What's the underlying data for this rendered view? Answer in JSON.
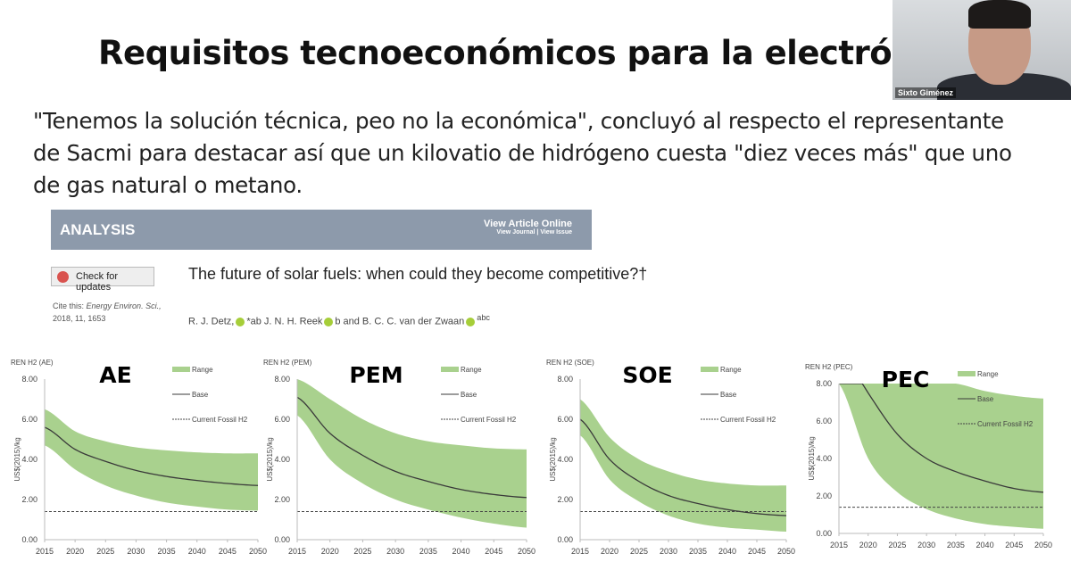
{
  "slide": {
    "title": "Requisitos tecnoeconómicos para la electrólisis",
    "quote": "\"Tenemos la solución técnica, peo no la económica\", concluyó al respecto el representante de Sacmi para destacar así que un kilovatio de hidrógeno cuesta \"diez veces más\" que uno de gas natural o metano."
  },
  "webcam": {
    "name": "Sixto Giménez"
  },
  "article": {
    "section": "ANALYSIS",
    "view_online": "View Article Online",
    "view_links": "View Journal | View Issue",
    "check_updates": "Check for updates",
    "cite_label": "Cite this:",
    "cite_journal": "Energy Environ. Sci.,",
    "cite_ref": "2018, 11, 1653",
    "title": "The future of solar fuels: when could they become competitive?†",
    "authors": [
      "R. J. Detz,",
      "*ab J. N. H. Reek",
      "b and B. C. C. van der Zwaan",
      "abc"
    ]
  },
  "colors": {
    "range": "#a9d18e",
    "base": "#3a3a3a",
    "fossil": "#444444"
  },
  "chart_data": [
    {
      "type": "area",
      "title": "REN H2 (AE)",
      "overlay": "AE",
      "ylabel": "US$(2015)/kg",
      "ylim": [
        0,
        8
      ],
      "yticks": [
        "0.00",
        "2.00",
        "4.00",
        "6.00",
        "8.00"
      ],
      "x": [
        2015,
        2020,
        2025,
        2030,
        2035,
        2040,
        2045,
        2050
      ],
      "legend": [
        "Range",
        "Base",
        "Current Fossil H2"
      ],
      "series": [
        {
          "name": "Base",
          "values": [
            5.6,
            4.5,
            3.9,
            3.45,
            3.15,
            2.95,
            2.8,
            2.7
          ]
        },
        {
          "name": "Range upper",
          "values": [
            6.5,
            5.4,
            4.9,
            4.6,
            4.45,
            4.35,
            4.3,
            4.3
          ]
        },
        {
          "name": "Range lower",
          "values": [
            4.7,
            3.5,
            2.7,
            2.2,
            1.85,
            1.65,
            1.5,
            1.45
          ]
        },
        {
          "name": "Current Fossil H2",
          "values": [
            1.4,
            1.4,
            1.4,
            1.4,
            1.4,
            1.4,
            1.4,
            1.4
          ]
        }
      ]
    },
    {
      "type": "area",
      "title": "REN H2 (PEM)",
      "overlay": "PEM",
      "ylabel": "US$(2015)/kg",
      "ylim": [
        0,
        8
      ],
      "yticks": [
        "0.00",
        "2.00",
        "4.00",
        "6.00",
        "8.00"
      ],
      "x": [
        2015,
        2020,
        2025,
        2030,
        2035,
        2040,
        2045,
        2050
      ],
      "legend": [
        "Range",
        "Base",
        "Current Fossil H2"
      ],
      "series": [
        {
          "name": "Base",
          "values": [
            7.1,
            5.3,
            4.2,
            3.4,
            2.9,
            2.5,
            2.25,
            2.1
          ]
        },
        {
          "name": "Range upper",
          "values": [
            8,
            7,
            6,
            5.3,
            4.9,
            4.7,
            4.55,
            4.5
          ]
        },
        {
          "name": "Range lower",
          "values": [
            6.2,
            4,
            2.8,
            2,
            1.5,
            1.1,
            0.8,
            0.6
          ]
        },
        {
          "name": "Current Fossil H2",
          "values": [
            1.4,
            1.4,
            1.4,
            1.4,
            1.4,
            1.4,
            1.4,
            1.4
          ]
        }
      ]
    },
    {
      "type": "area",
      "title": "REN H2 (SOE)",
      "overlay": "SOE",
      "ylabel": "US$(2015)/kg",
      "ylim": [
        0,
        8
      ],
      "yticks": [
        "0.00",
        "2.00",
        "4.00",
        "6.00",
        "8.00"
      ],
      "x": [
        2015,
        2020,
        2025,
        2030,
        2035,
        2040,
        2045,
        2050
      ],
      "legend": [
        "Range",
        "Base",
        "Current Fossil H2"
      ],
      "series": [
        {
          "name": "Base",
          "values": [
            6,
            4,
            2.9,
            2.2,
            1.8,
            1.5,
            1.3,
            1.2
          ]
        },
        {
          "name": "Range upper",
          "values": [
            7,
            5.1,
            4,
            3.4,
            3,
            2.8,
            2.7,
            2.7
          ]
        },
        {
          "name": "Range lower",
          "values": [
            5.2,
            3,
            1.9,
            1.2,
            0.8,
            0.6,
            0.5,
            0.4
          ]
        },
        {
          "name": "Current Fossil H2",
          "values": [
            1.4,
            1.4,
            1.4,
            1.4,
            1.4,
            1.4,
            1.4,
            1.4
          ]
        }
      ]
    },
    {
      "type": "area",
      "title": "REN H2 (PEC)",
      "overlay": "PEC",
      "ylabel": "US$(2015)/kg",
      "ylim": [
        0,
        8
      ],
      "yticks": [
        "0.00",
        "2.00",
        "4.00",
        "6.00",
        "8.00"
      ],
      "x": [
        2015,
        2020,
        2025,
        2030,
        2035,
        2040,
        2045,
        2050
      ],
      "legend": [
        "Range",
        "Base",
        "Current Fossil H2"
      ],
      "series": [
        {
          "name": "Base",
          "values": [
            10,
            7.5,
            5.3,
            4,
            3.3,
            2.8,
            2.4,
            2.2
          ]
        },
        {
          "name": "Range upper",
          "values": [
            8,
            8,
            8,
            8,
            8,
            7.6,
            7.35,
            7.2
          ]
        },
        {
          "name": "Range lower",
          "values": [
            8,
            4,
            2.2,
            1.3,
            0.8,
            0.5,
            0.35,
            0.25
          ]
        },
        {
          "name": "Current Fossil H2",
          "values": [
            1.4,
            1.4,
            1.4,
            1.4,
            1.4,
            1.4,
            1.4,
            1.4
          ]
        }
      ]
    }
  ]
}
